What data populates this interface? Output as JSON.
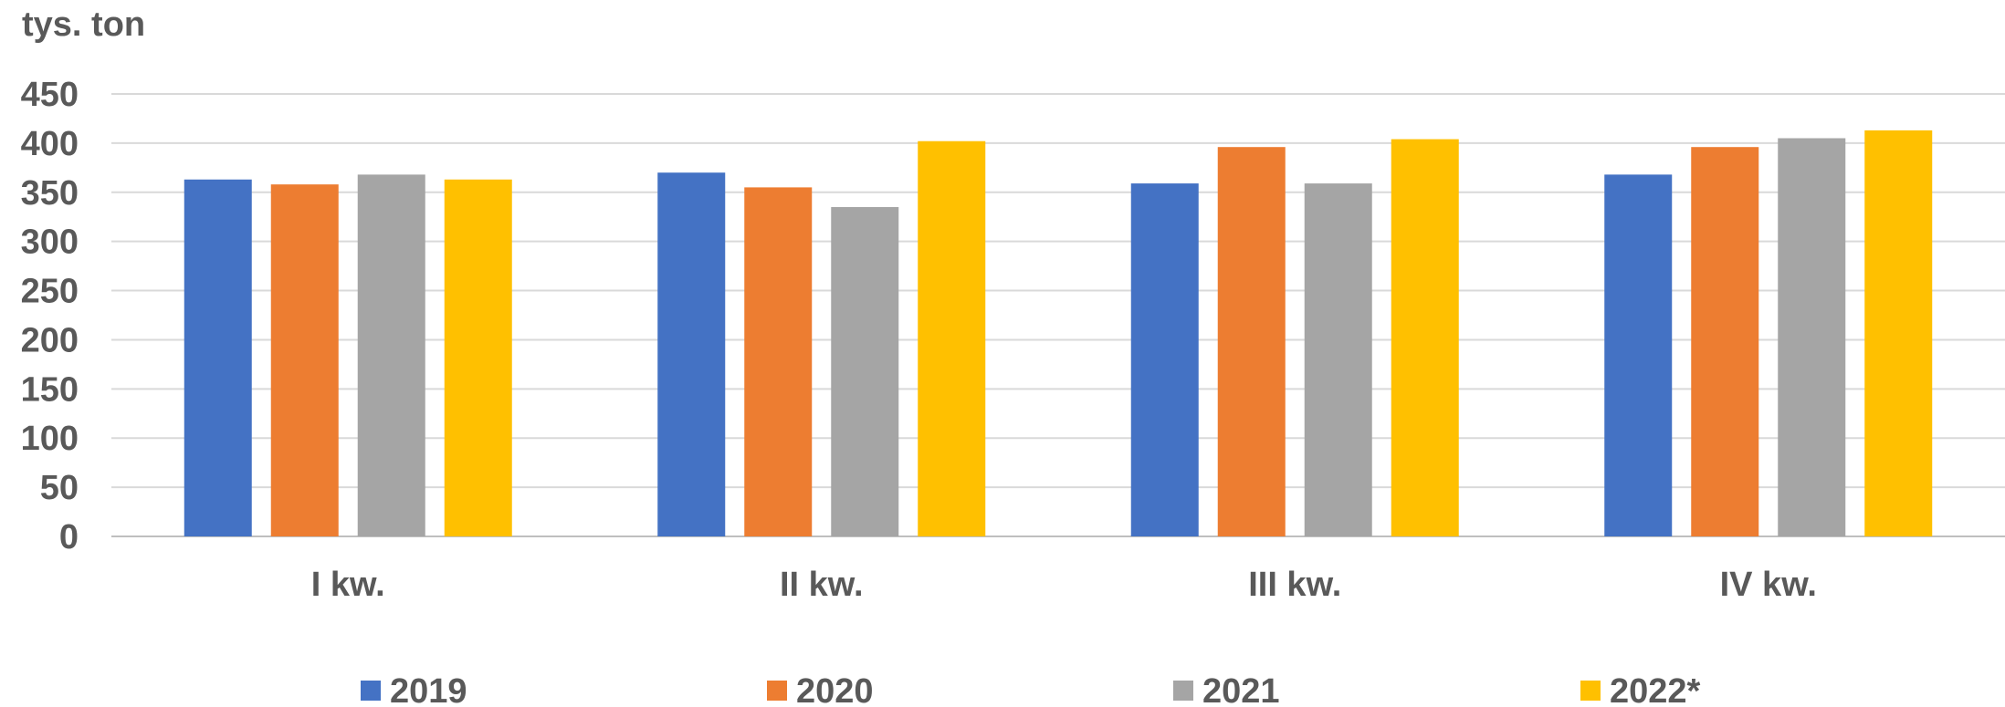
{
  "chart_data": {
    "type": "bar",
    "ylabel": "tys. ton",
    "categories": [
      "I kw.",
      "II kw.",
      "III kw.",
      "IV kw."
    ],
    "series": [
      {
        "name": "2019",
        "color": "#4472C4",
        "values": [
          363,
          370,
          359,
          368
        ]
      },
      {
        "name": "2020",
        "color": "#ED7D31",
        "values": [
          358,
          355,
          396,
          396
        ]
      },
      {
        "name": "2021",
        "color": "#A5A5A5",
        "values": [
          368,
          335,
          359,
          405
        ]
      },
      {
        "name": "2022*",
        "color": "#FFC000",
        "values": [
          363,
          402,
          404,
          413
        ]
      }
    ],
    "ylim": [
      0,
      450
    ],
    "yticks": [
      0,
      50,
      100,
      150,
      200,
      250,
      300,
      350,
      400,
      450
    ],
    "grid": true,
    "legend_position": "bottom"
  }
}
